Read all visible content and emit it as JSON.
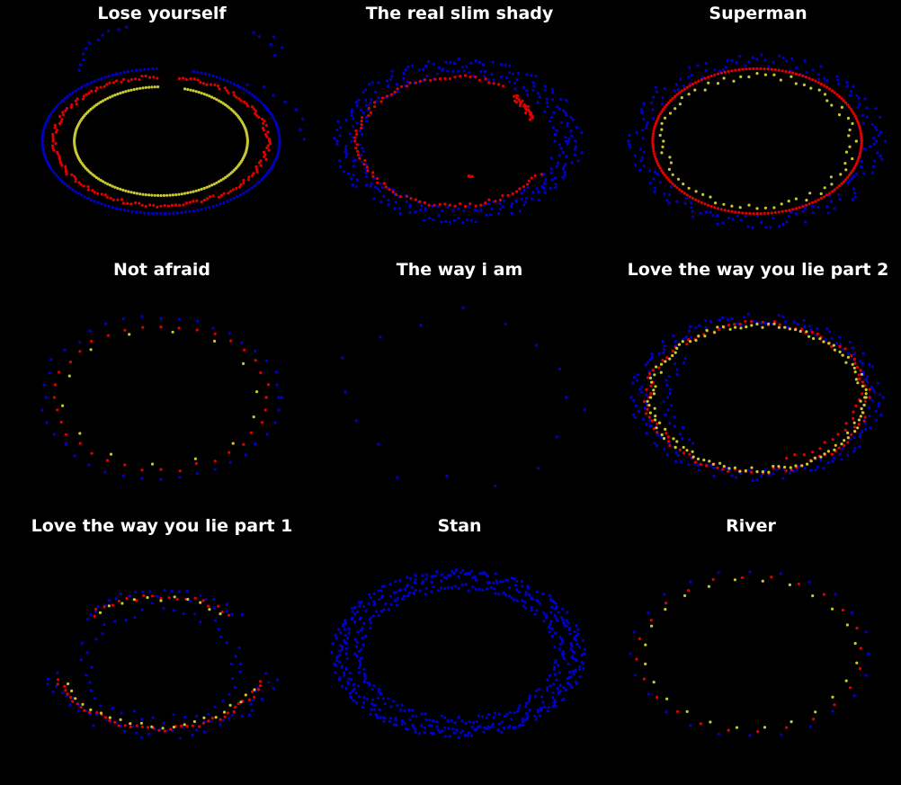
{
  "figure": {
    "background": "#000000",
    "grid": false,
    "axes_visible": false,
    "legend": "none"
  },
  "chart_data": [
    {
      "type": "scatter",
      "title": "Lose yourself",
      "series": [
        {
          "color": "#0000cc",
          "rings": [
            {
              "r": 1.0,
              "ry": 0.72,
              "cx": 0.0,
              "cy": 0.0,
              "start": 92,
              "end": 435,
              "jitter": 0.0,
              "step": 2
            },
            {
              "r": 0.88,
              "ry": 0.63,
              "cx": 0.18,
              "cy": 0.65,
              "start": 20,
              "end": 175,
              "jitter": 0.07,
              "step": 5
            },
            {
              "r": 0.85,
              "ry": 0.62,
              "cx": 0.35,
              "cy": 0.02,
              "start": 0,
              "end": 70,
              "jitter": 0.05,
              "step": 9
            }
          ]
        },
        {
          "color": "#e00000",
          "rings": [
            {
              "r": 0.9,
              "ry": 0.64,
              "cx": 0.0,
              "cy": 0.0,
              "start": 92,
              "end": 440,
              "jitter": 0.025,
              "step": 2
            }
          ]
        },
        {
          "color": "#c8c832",
          "rings": [
            {
              "r": 0.73,
              "ry": 0.54,
              "cx": 0.0,
              "cy": 0.0,
              "start": 92,
              "end": 435,
              "jitter": 0.0,
              "step": 2
            }
          ]
        }
      ]
    },
    {
      "type": "scatter",
      "title": "The real slim shady",
      "series": [
        {
          "color": "#0000cc",
          "rings": [
            {
              "r": 0.98,
              "ry": 0.76,
              "cx": 0.0,
              "cy": 0.0,
              "start": 0,
              "end": 360,
              "jitter": 0.08,
              "step": 2
            },
            {
              "r": 0.86,
              "ry": 0.68,
              "cx": 0.0,
              "cy": 0.0,
              "start": 0,
              "end": 360,
              "jitter": 0.06,
              "step": 3
            }
          ]
        },
        {
          "color": "#e00000",
          "rings": [
            {
              "r": 0.82,
              "ry": 0.64,
              "cx": -0.03,
              "cy": 0.0,
              "start": 60,
              "end": 330,
              "jitter": 0.03,
              "step": 3
            },
            {
              "r": 0.6,
              "ry": 0.55,
              "cx": 0.05,
              "cy": 0.05,
              "start": 18,
              "end": 46,
              "jitter": 0.05,
              "step": 1
            },
            {
              "r": 0.45,
              "ry": 0.4,
              "cx": 0.1,
              "cy": 0.05,
              "start": 268,
              "end": 272,
              "jitter": 0.02,
              "step": 1
            }
          ]
        }
      ]
    },
    {
      "type": "scatter",
      "title": "Superman",
      "series": [
        {
          "color": "#0000cc",
          "rings": [
            {
              "r": 1.0,
              "ry": 0.8,
              "cx": 0.0,
              "cy": 0.0,
              "start": 0,
              "end": 360,
              "jitter": 0.09,
              "step": 2
            }
          ]
        },
        {
          "color": "#e00000",
          "rings": [
            {
              "r": 0.88,
              "ry": 0.72,
              "cx": 0.0,
              "cy": 0.0,
              "start": 0,
              "end": 360,
              "jitter": 0.0,
              "step": 2
            }
          ]
        },
        {
          "color": "#c8c832",
          "rings": [
            {
              "r": 0.8,
              "ry": 0.65,
              "cx": 0.0,
              "cy": 0.0,
              "start": 0,
              "end": 360,
              "jitter": 0.05,
              "step": 5
            }
          ]
        }
      ]
    },
    {
      "type": "scatter",
      "title": "Not afraid",
      "series": [
        {
          "color": "#0000cc",
          "rings": [
            {
              "r": 1.0,
              "ry": 0.8,
              "cx": 0.0,
              "cy": 0.0,
              "start": 0,
              "end": 360,
              "jitter": 0.04,
              "step": 9
            }
          ]
        },
        {
          "color": "#e00000",
          "rings": [
            {
              "r": 0.9,
              "ry": 0.72,
              "cx": 0.0,
              "cy": 0.0,
              "start": 0,
              "end": 360,
              "jitter": 0.03,
              "step": 10
            }
          ]
        },
        {
          "color": "#c8c832",
          "rings": [
            {
              "r": 0.82,
              "ry": 0.66,
              "cx": 0.0,
              "cy": 0.0,
              "start": 5,
              "end": 360,
              "jitter": 0.02,
              "step": 26
            }
          ]
        }
      ]
    },
    {
      "type": "scatter",
      "title": "The way i am",
      "series": [
        {
          "color": "#0000cc",
          "rings": [
            {
              "r": 1.0,
              "ry": 0.82,
              "cx": 0.0,
              "cy": 0.0,
              "start": 0,
              "end": 360,
              "jitter": 0.12,
              "step": 22
            }
          ]
        }
      ]
    },
    {
      "type": "scatter",
      "title": "Love the way you lie part 2",
      "series": [
        {
          "color": "#0000cc",
          "rings": [
            {
              "r": 1.0,
              "ry": 0.78,
              "cx": 0.0,
              "cy": 0.0,
              "start": 0,
              "end": 360,
              "jitter": 0.07,
              "step": 2
            },
            {
              "r": 0.72,
              "ry": 0.6,
              "cx": -0.05,
              "cy": 0.0,
              "start": 140,
              "end": 230,
              "jitter": 0.06,
              "step": 4
            }
          ]
        },
        {
          "color": "#e00000",
          "rings": [
            {
              "r": 0.92,
              "ry": 0.74,
              "cx": 0.0,
              "cy": 0.0,
              "start": 0,
              "end": 360,
              "jitter": 0.04,
              "step": 3
            },
            {
              "r": 0.72,
              "ry": 0.6,
              "cx": 0.12,
              "cy": 0.0,
              "start": 280,
              "end": 360,
              "jitter": 0.03,
              "step": 6
            }
          ]
        },
        {
          "color": "#c8c832",
          "rings": [
            {
              "r": 0.9,
              "ry": 0.72,
              "cx": 0.0,
              "cy": 0.0,
              "start": 0,
              "end": 360,
              "jitter": 0.04,
              "step": 3
            }
          ]
        }
      ]
    },
    {
      "type": "scatter",
      "title": "Love the way you lie part 1",
      "series": [
        {
          "color": "#0000cc",
          "rings": [
            {
              "r": 0.98,
              "ry": 0.8,
              "cx": 0.0,
              "cy": 0.0,
              "start": 195,
              "end": 345,
              "jitter": 0.08,
              "step": 3
            },
            {
              "r": 0.85,
              "ry": 0.65,
              "cx": 0.0,
              "cy": -0.05,
              "start": 40,
              "end": 140,
              "jitter": 0.07,
              "step": 4
            },
            {
              "r": 0.65,
              "ry": 0.55,
              "cx": 0.0,
              "cy": -0.1,
              "start": 0,
              "end": 360,
              "jitter": 0.1,
              "step": 8
            }
          ]
        },
        {
          "color": "#e00000",
          "rings": [
            {
              "r": 0.92,
              "ry": 0.75,
              "cx": 0.0,
              "cy": 0.0,
              "start": 200,
              "end": 340,
              "jitter": 0.03,
              "step": 3
            },
            {
              "r": 0.82,
              "ry": 0.62,
              "cx": 0.0,
              "cy": -0.05,
              "start": 45,
              "end": 135,
              "jitter": 0.04,
              "step": 5
            }
          ]
        },
        {
          "color": "#c8c832",
          "rings": [
            {
              "r": 0.88,
              "ry": 0.72,
              "cx": 0.0,
              "cy": 0.0,
              "start": 205,
              "end": 335,
              "jitter": 0.03,
              "step": 6
            },
            {
              "r": 0.8,
              "ry": 0.6,
              "cx": 0.0,
              "cy": -0.05,
              "start": 50,
              "end": 130,
              "jitter": 0.04,
              "step": 8
            }
          ]
        }
      ]
    },
    {
      "type": "scatter",
      "title": "Stan",
      "series": [
        {
          "color": "#0000cc",
          "rings": [
            {
              "r": 1.0,
              "ry": 0.78,
              "cx": 0.0,
              "cy": 0.0,
              "start": 0,
              "end": 360,
              "jitter": 0.07,
              "step": 1
            },
            {
              "r": 0.85,
              "ry": 0.66,
              "cx": 0.0,
              "cy": 0.0,
              "start": 0,
              "end": 360,
              "jitter": 0.05,
              "step": 2
            }
          ]
        }
      ]
    },
    {
      "type": "scatter",
      "title": "River",
      "series": [
        {
          "color": "#0000cc",
          "rings": [
            {
              "r": 1.0,
              "ry": 0.82,
              "cx": 0.0,
              "cy": 0.0,
              "start": 0,
              "end": 360,
              "jitter": 0.02,
              "step": 15
            }
          ]
        },
        {
          "color": "#e00000",
          "rings": [
            {
              "r": 0.94,
              "ry": 0.77,
              "cx": 0.0,
              "cy": 0.0,
              "start": 4,
              "end": 360,
              "jitter": 0.02,
              "step": 15
            }
          ]
        },
        {
          "color": "#c8c832",
          "rings": [
            {
              "r": 0.89,
              "ry": 0.73,
              "cx": 0.0,
              "cy": 0.0,
              "start": 8,
              "end": 360,
              "jitter": 0.02,
              "step": 15
            }
          ]
        }
      ]
    }
  ]
}
